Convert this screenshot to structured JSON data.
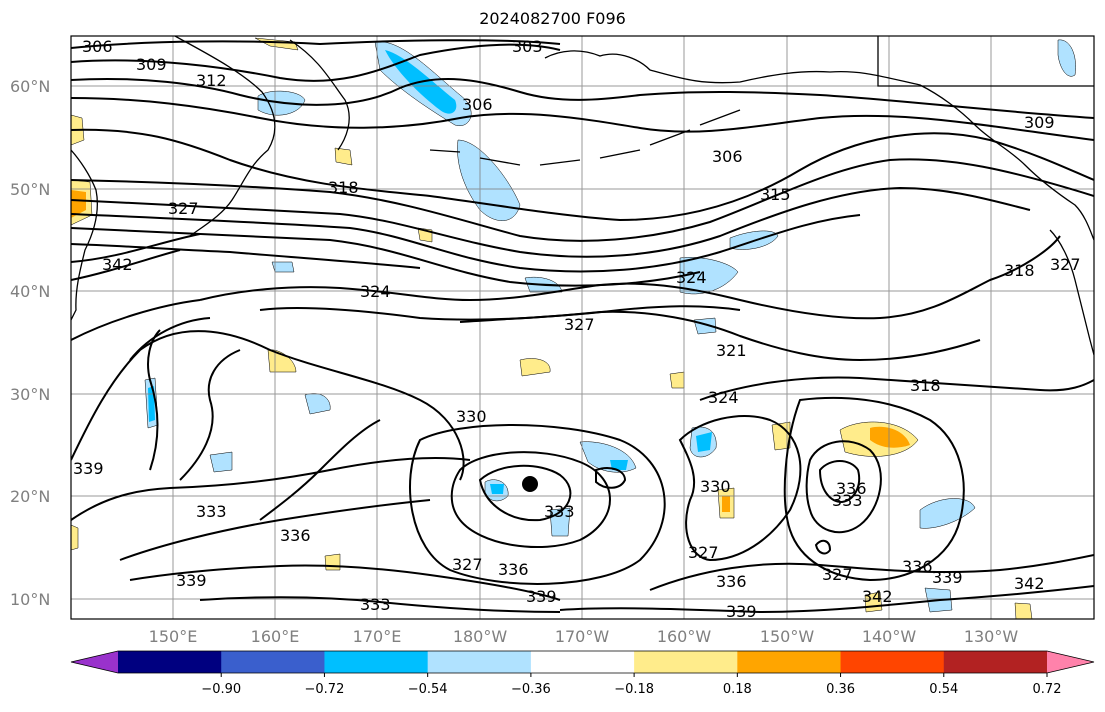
{
  "title": "2024082700 F096",
  "lat_labels": [
    "60°N",
    "50°N",
    "40°N",
    "30°N",
    "20°N",
    "10°N"
  ],
  "lon_labels": [
    "150°E",
    "160°E",
    "170°E",
    "180°W",
    "170°W",
    "160°W",
    "150°W",
    "140°W",
    "130°W"
  ],
  "colorbar": {
    "colors": [
      "#9932cc",
      "#000080",
      "#3a5fcd",
      "#00bfff",
      "#b0e2ff",
      "#ffffff",
      "#ffec8b",
      "#ffa500",
      "#ff4500",
      "#b22222",
      "#ff82ab"
    ],
    "ticks": [
      "−0.90",
      "−0.72",
      "−0.54",
      "−0.36",
      "−0.18",
      "0.18",
      "0.36",
      "0.54",
      "0.72",
      "0.90"
    ]
  },
  "contour_labels": [
    "306",
    "309",
    "312",
    "303",
    "306",
    "306",
    "309",
    "318",
    "327",
    "342",
    "315",
    "324",
    "318",
    "324",
    "327",
    "321",
    "318",
    "324",
    "330",
    "339",
    "333",
    "333",
    "336",
    "327",
    "336",
    "339",
    "333",
    "327",
    "330",
    "327",
    "336",
    "339",
    "336",
    "342",
    "339",
    "342",
    "339",
    "333",
    "336",
    "327"
  ],
  "marker": "storm-center"
}
